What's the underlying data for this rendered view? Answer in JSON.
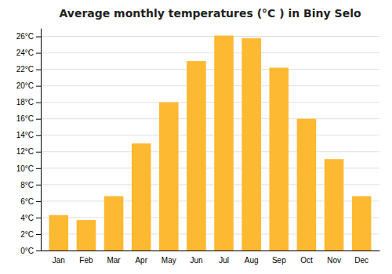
{
  "chart_data": {
    "type": "bar",
    "title": "Average monthly temperatures (°C ) in Biny Selo",
    "categories": [
      "Jan",
      "Feb",
      "Mar",
      "Apr",
      "May",
      "Jun",
      "Jul",
      "Aug",
      "Sep",
      "Oct",
      "Nov",
      "Dec"
    ],
    "values": [
      4.3,
      3.7,
      6.6,
      13.0,
      18.0,
      23.0,
      26.1,
      25.8,
      22.2,
      16.0,
      11.1,
      6.6
    ],
    "color": "#FDB931",
    "ylim": [
      0,
      27
    ],
    "yticks": [
      {
        "value": 0,
        "label": "0°C"
      },
      {
        "value": 2,
        "label": "2°C"
      },
      {
        "value": 4,
        "label": "4°C"
      },
      {
        "value": 6,
        "label": "6°C"
      },
      {
        "value": 8,
        "label": "8°C"
      },
      {
        "value": 10,
        "label": "10°C"
      },
      {
        "value": 12,
        "label": "12°C"
      },
      {
        "value": 14,
        "label": "14°C"
      },
      {
        "value": 16,
        "label": "16°C"
      },
      {
        "value": 18,
        "label": "18°C"
      },
      {
        "value": 20,
        "label": "20°C"
      },
      {
        "value": 22,
        "label": "22°C"
      },
      {
        "value": 24,
        "label": "24°C"
      },
      {
        "value": 26,
        "label": "26°C"
      }
    ],
    "grid": true
  }
}
